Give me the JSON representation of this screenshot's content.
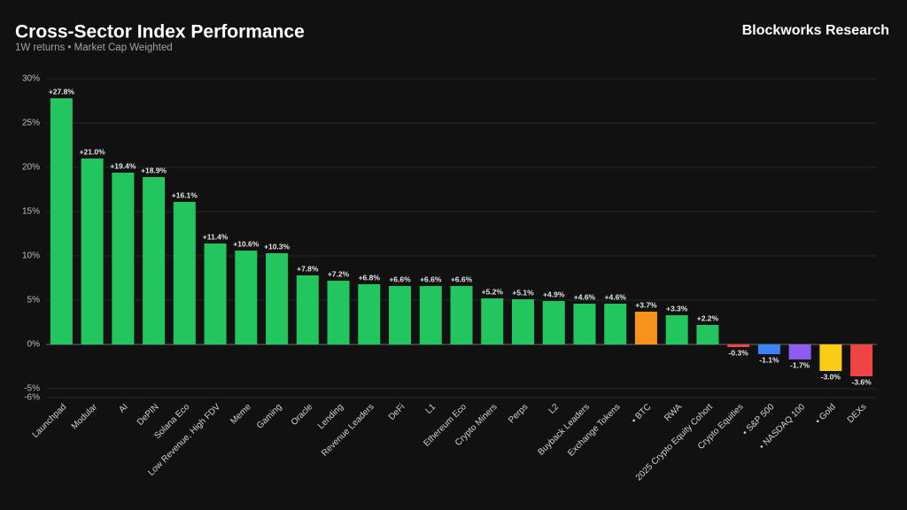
{
  "chart_data": {
    "type": "bar",
    "title": "Cross-Sector Index Performance",
    "subtitle": "1W returns • Market Cap Weighted",
    "source": "Blockworks Research",
    "categories": [
      "Launchpad",
      "Modular",
      "AI",
      "DePIN",
      "Solana Eco",
      "Low Revenue, High FDV",
      "Meme",
      "Gaming",
      "Oracle",
      "Lending",
      "Revenue Leaders",
      "DeFi",
      "L1",
      "Ethereum Eco",
      "Crypto Miners",
      "Perps",
      "L2",
      "Buyback Leaders",
      "Exchange Tokens",
      "• BTC",
      "RWA",
      "2025 Crypto Equity Cohort",
      "Crypto Equities",
      "• S&P 500",
      "• NASDAQ 100",
      "• Gold",
      "DEXs"
    ],
    "values": [
      27.8,
      21.0,
      19.4,
      18.9,
      16.1,
      11.4,
      10.6,
      10.3,
      7.8,
      7.2,
      6.8,
      6.6,
      6.6,
      6.6,
      5.2,
      5.1,
      4.9,
      4.6,
      4.6,
      3.7,
      3.3,
      2.2,
      -0.3,
      -1.1,
      -1.7,
      -3.0,
      -3.6
    ],
    "value_labels": [
      "+27.8%",
      "+21.0%",
      "+19.4%",
      "+18.9%",
      "+16.1%",
      "+11.4%",
      "+10.6%",
      "+10.3%",
      "+7.8%",
      "+7.2%",
      "+6.8%",
      "+6.6%",
      "+6.6%",
      "+6.6%",
      "+5.2%",
      "+5.1%",
      "+4.9%",
      "+4.6%",
      "+4.6%",
      "+3.7%",
      "+3.3%",
      "+2.2%",
      "-0.3%",
      "-1.1%",
      "-1.7%",
      "-3.0%",
      "-3.6%"
    ],
    "colors": [
      "#22c55e",
      "#22c55e",
      "#22c55e",
      "#22c55e",
      "#22c55e",
      "#22c55e",
      "#22c55e",
      "#22c55e",
      "#22c55e",
      "#22c55e",
      "#22c55e",
      "#22c55e",
      "#22c55e",
      "#22c55e",
      "#22c55e",
      "#22c55e",
      "#22c55e",
      "#22c55e",
      "#22c55e",
      "#f7931a",
      "#22c55e",
      "#22c55e",
      "#ef4444",
      "#3b82f6",
      "#8b5cf6",
      "#facc15",
      "#ef4444"
    ],
    "ylim": [
      -6,
      30
    ],
    "yticks": [
      {
        "value": -6,
        "label": "-6%"
      },
      {
        "value": -5,
        "label": "-5%"
      },
      {
        "value": 0,
        "label": "0%"
      },
      {
        "value": 5,
        "label": "5%"
      },
      {
        "value": 10,
        "label": "10%"
      },
      {
        "value": 15,
        "label": "15%"
      },
      {
        "value": 20,
        "label": "20%"
      },
      {
        "value": 25,
        "label": "25%"
      },
      {
        "value": 30,
        "label": "30%"
      }
    ],
    "grid": true
  }
}
